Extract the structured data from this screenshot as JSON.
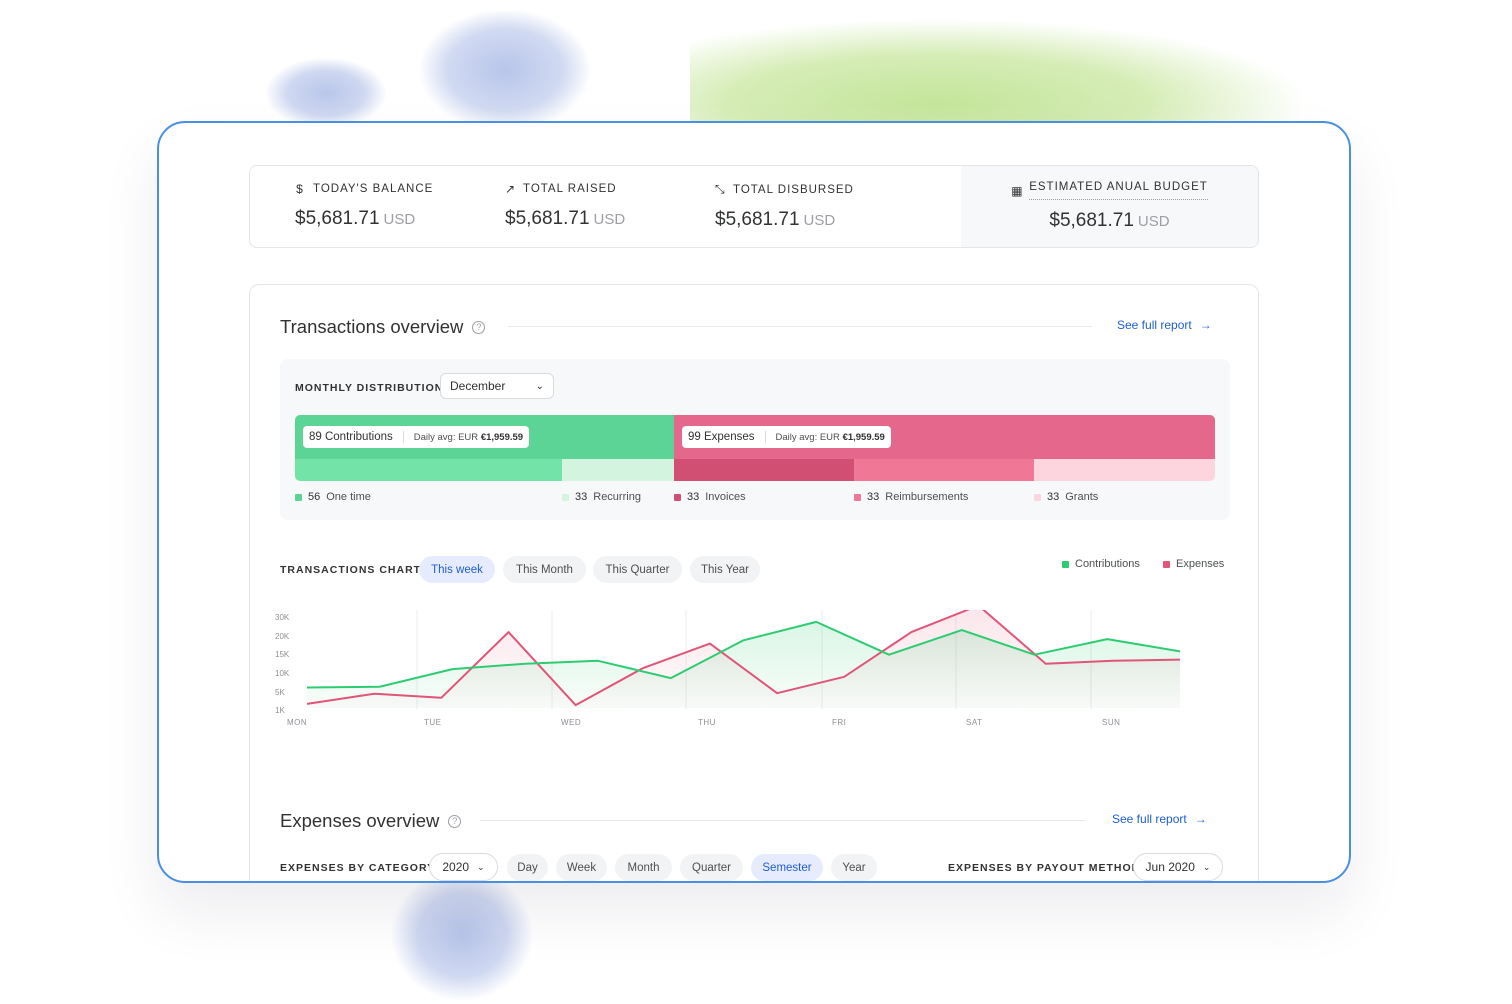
{
  "stats": [
    {
      "icon": "$",
      "icon_name": "dollar-icon",
      "label": "TODAY'S BALANCE",
      "value": "$5,681.71",
      "currency": "USD"
    },
    {
      "icon": "↗",
      "icon_name": "trend-icon",
      "label": "TOTAL RAISED",
      "value": "$5,681.71",
      "currency": "USD"
    },
    {
      "icon": "⤡",
      "icon_name": "expand-arrows-icon",
      "label": "TOTAL DISBURSED",
      "value": "$5,681.71",
      "currency": "USD"
    },
    {
      "icon": "▦",
      "icon_name": "calendar-icon",
      "label": "ESTIMATED ANUAL BUDGET",
      "value": "$5,681.71",
      "currency": "USD"
    }
  ],
  "transactions": {
    "title": "Transactions overview",
    "help_icon": "?",
    "link": "See full report",
    "link_arrow": "→"
  },
  "distribution": {
    "label": "MONTHLY DISTRIBUTION",
    "month": "December",
    "chevron": "⌄",
    "contributions": {
      "text": "89 Contributions",
      "avg_prefix": "Daily avg: EUR ",
      "avg_value": "€1,959.59"
    },
    "expenses": {
      "text": "99 Expenses",
      "avg_prefix": "Daily avg: EUR ",
      "avg_value": "€1,959.59"
    },
    "breakdown": [
      {
        "count": "56",
        "label": "One time",
        "color": "#5cd495"
      },
      {
        "count": "33",
        "label": "Recurring",
        "color": "#d3f5df"
      },
      {
        "count": "33",
        "label": "Invoices",
        "color": "#d14f72"
      },
      {
        "count": "33",
        "label": "Reimbursements",
        "color": "#f07896"
      },
      {
        "count": "33",
        "label": "Grants",
        "color": "#fcd5de"
      }
    ]
  },
  "transactions_chart": {
    "label": "TRANSACTIONS CHART",
    "periods": [
      "This week",
      "This Month",
      "This Quarter",
      "This Year"
    ],
    "active_period": "This week",
    "legend": [
      {
        "name": "Contributions",
        "color": "#2ecc71"
      },
      {
        "name": "Expenses",
        "color": "#e05578"
      }
    ]
  },
  "chart_data": {
    "type": "line",
    "ytick_labels": [
      "30K",
      "20K",
      "15K",
      "10K",
      "5K",
      "1K"
    ],
    "xtick_labels": [
      "MON",
      "TUE",
      "WED",
      "THU",
      "FRI",
      "SAT",
      "SUN"
    ],
    "series": [
      {
        "name": "Contributions",
        "color": "#2ecc71",
        "values": [
          5,
          5.2,
          9.5,
          10.8,
          11.5,
          7.3,
          16.5,
          21,
          13,
          19,
          13,
          16.8,
          13.8
        ]
      },
      {
        "name": "Expenses",
        "color": "#e05578",
        "values": [
          1,
          3.5,
          2.5,
          18.5,
          0.7,
          9.7,
          15.7,
          3.6,
          7.6,
          18.5,
          25,
          10.8,
          11.5,
          11.8
        ]
      }
    ]
  },
  "expenses": {
    "title": "Expenses overview",
    "help_icon": "?",
    "link": "See full report",
    "link_arrow": "→",
    "by_category_label": "EXPENSES BY CATEGORY",
    "year": "2020",
    "periods": [
      "Day",
      "Week",
      "Month",
      "Quarter",
      "Semester",
      "Year"
    ],
    "active_period": "Semester",
    "by_payout_label": "EXPENSES BY PAYOUT METHOD",
    "payout_month": "Jun 2020",
    "chevron": "⌄"
  }
}
